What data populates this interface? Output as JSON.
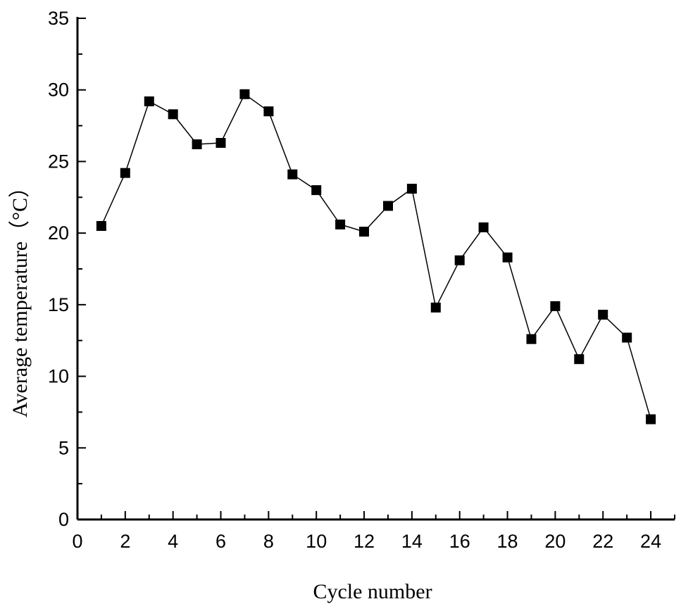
{
  "chart_data": {
    "type": "line",
    "title": "",
    "xlabel": "Cycle number",
    "ylabel": "Average temperature（°C）",
    "xlim": [
      0,
      25
    ],
    "ylim": [
      0,
      35
    ],
    "x_ticks": [
      0,
      2,
      4,
      6,
      8,
      10,
      12,
      14,
      16,
      18,
      20,
      22,
      24
    ],
    "y_ticks": [
      0,
      5,
      10,
      15,
      20,
      25,
      30,
      35
    ],
    "x_tick_labels": [
      "0",
      "2",
      "4",
      "6",
      "8",
      "10",
      "12",
      "14",
      "16",
      "18",
      "20",
      "22",
      "24"
    ],
    "y_tick_labels": [
      "0",
      "5",
      "10",
      "15",
      "20",
      "25",
      "30",
      "35"
    ],
    "grid": false,
    "marker": "square",
    "series_color": "#000000",
    "series": [
      {
        "x": [
          1,
          2,
          3,
          4,
          5,
          6,
          7,
          8,
          9,
          10,
          11,
          12,
          13,
          14,
          15,
          16,
          17,
          18,
          19,
          20,
          21,
          22,
          23,
          24
        ],
        "values": [
          20.5,
          24.2,
          29.2,
          28.3,
          26.2,
          26.3,
          29.7,
          28.5,
          24.1,
          23.0,
          20.6,
          20.1,
          21.9,
          23.1,
          14.8,
          18.1,
          20.4,
          18.3,
          12.6,
          14.9,
          11.2,
          14.3,
          12.7,
          7.0
        ]
      }
    ]
  }
}
